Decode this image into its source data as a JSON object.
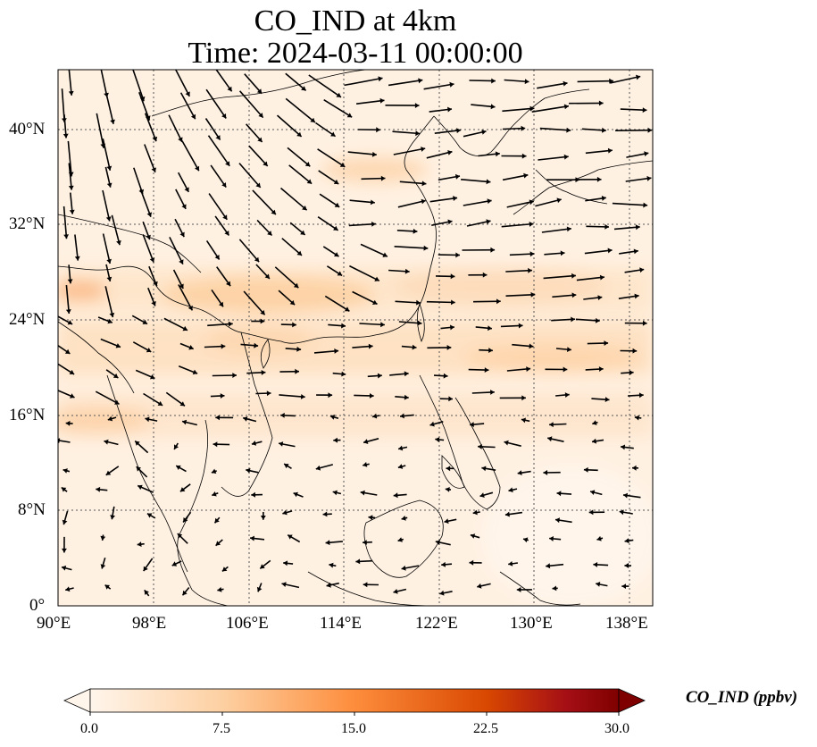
{
  "title": {
    "line1": "CO_IND at 4km",
    "line2": "Time: 2024-03-11 00:00:00"
  },
  "map": {
    "lon_range": [
      90,
      140
    ],
    "lat_range": [
      0,
      45
    ],
    "lon_ticks": [
      "90°E",
      "98°E",
      "106°E",
      "114°E",
      "122°E",
      "130°E",
      "138°E"
    ],
    "lat_ticks": [
      "0°",
      "8°N",
      "16°N",
      "24°N",
      "32°N",
      "40°N"
    ],
    "gridlines": true,
    "wind_vectors": true
  },
  "colorbar": {
    "label": "CO_IND (ppbv)",
    "ticks": [
      "0.0",
      "7.5",
      "15.0",
      "22.5",
      "30.0"
    ],
    "range": [
      0,
      30
    ],
    "extend": "both",
    "colormap": [
      "#fff5eb",
      "#fdd0a2",
      "#fd8d3c",
      "#d94801",
      "#8c2d04",
      "#7f0000"
    ]
  }
}
